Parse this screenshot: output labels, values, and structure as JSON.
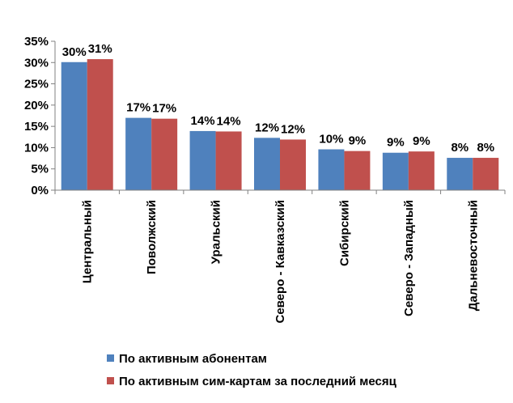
{
  "chart_data": {
    "type": "bar",
    "categories": [
      "Центральный",
      "Поволжский",
      "Уральский",
      "Северо - Кавказский",
      "Сибирский",
      "Северо - Западный",
      "Дальневосточный"
    ],
    "series": [
      {
        "name": "По активным абонентам",
        "color": "#4F81BD",
        "values": [
          30,
          17,
          14,
          12,
          10,
          9,
          8
        ],
        "labels": [
          "30%",
          "17%",
          "14%",
          "12%",
          "10%",
          "9%",
          "8%"
        ],
        "plot_values": [
          30.1,
          17.0,
          13.9,
          12.3,
          9.6,
          8.8,
          7.6
        ]
      },
      {
        "name": "По активным сим-картам за последний месяц",
        "color": "#C0504D",
        "values": [
          31,
          17,
          14,
          12,
          9,
          9,
          8
        ],
        "labels": [
          "31%",
          "17%",
          "14%",
          "12%",
          "9%",
          "9%",
          "8%"
        ],
        "plot_values": [
          30.8,
          16.8,
          13.8,
          11.9,
          9.2,
          9.1,
          7.6
        ]
      }
    ],
    "ylim": [
      0,
      35
    ],
    "yticks": [
      "0%",
      "5%",
      "10%",
      "15%",
      "20%",
      "25%",
      "30%",
      "35%"
    ],
    "grid": false,
    "legend_position": "bottom"
  }
}
